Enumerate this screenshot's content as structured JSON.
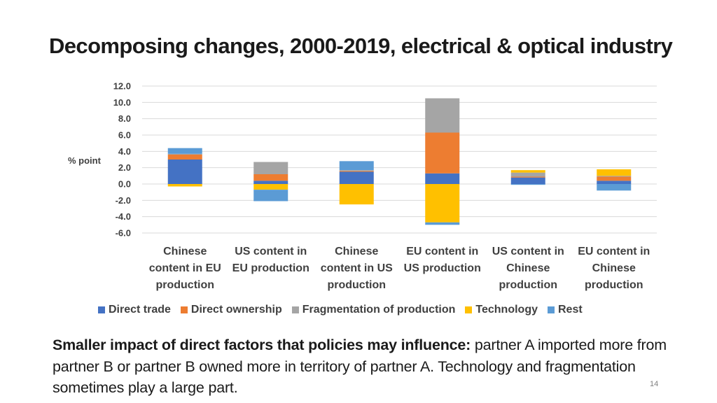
{
  "slide": {
    "title": "Decomposing changes, 2000-2019, electrical & optical industry",
    "caption_bold": "Smaller impact of direct factors that policies may influence:",
    "caption_rest": " partner A imported more from partner B or partner B owned more in territory of partner A. Technology and fragmentation sometimes play a large part.",
    "page_number": "14"
  },
  "chart_data": {
    "type": "bar",
    "stacked": true,
    "ylabel": "% point",
    "ylim": [
      -6.0,
      12.0
    ],
    "yticks": [
      "12.0",
      "10.0",
      "8.0",
      "6.0",
      "4.0",
      "2.0",
      "0.0",
      "-2.0",
      "-4.0",
      "-6.0"
    ],
    "legend_position": "bottom",
    "categories": [
      [
        "Chinese",
        "content in EU",
        "production"
      ],
      [
        "US content in",
        "EU production"
      ],
      [
        "Chinese",
        "content in US",
        "production"
      ],
      [
        "EU content in",
        "US production"
      ],
      [
        "US content in",
        "Chinese",
        "production"
      ],
      [
        "EU content in",
        "Chinese",
        "production"
      ]
    ],
    "series": [
      {
        "name": "Direct trade",
        "color": "#4472C4",
        "values": [
          3.0,
          0.4,
          1.5,
          1.3,
          0.8,
          0.4
        ]
      },
      {
        "name": "Direct ownership",
        "color": "#ED7D31",
        "values": [
          0.6,
          0.8,
          0.1,
          5.0,
          0.1,
          0.5
        ]
      },
      {
        "name": "Fragmentation of production",
        "color": "#A5A5A5",
        "values": [
          0.1,
          1.5,
          0.1,
          4.2,
          0.5,
          0.1
        ]
      },
      {
        "name": "Technology",
        "color": "#FFC000",
        "values": [
          -0.3,
          -0.7,
          -2.5,
          -4.7,
          0.3,
          0.8
        ]
      },
      {
        "name": "Rest",
        "color": "#5B9BD5",
        "values": [
          0.7,
          -1.4,
          1.1,
          -0.3,
          -0.1,
          -0.8
        ]
      }
    ]
  }
}
